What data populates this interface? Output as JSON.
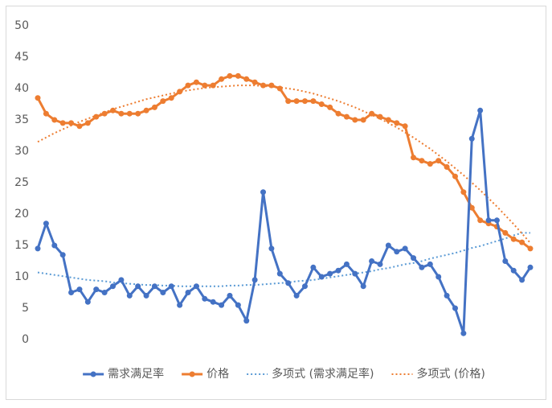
{
  "chart_data": {
    "type": "line",
    "ylim": [
      0,
      50
    ],
    "yticks": [
      0,
      5,
      10,
      15,
      20,
      25,
      30,
      35,
      40,
      45,
      50
    ],
    "grid": false,
    "legend": "bottom",
    "series": [
      {
        "name": "需求满足率",
        "color": "#4472c4",
        "style": "solid",
        "marker": true,
        "values": [
          14.5,
          18.5,
          15,
          13.5,
          7.5,
          8,
          6,
          8,
          7.5,
          8.5,
          9.5,
          7,
          8.5,
          7,
          8.5,
          7.5,
          8.5,
          5.5,
          7.5,
          8.5,
          6.5,
          6,
          5.5,
          7,
          5.5,
          3,
          9.5,
          23.5,
          14.5,
          10.5,
          9,
          7,
          8.5,
          11.5,
          10,
          10.5,
          11,
          12,
          10.5,
          8.5,
          12.5,
          12,
          15,
          14,
          14.5,
          13,
          11.5,
          12,
          10,
          7,
          5,
          1,
          32,
          36.5,
          19,
          19,
          12.5,
          11,
          9.5,
          11.5
        ]
      },
      {
        "name": "价格",
        "color": "#ed7d31",
        "style": "solid",
        "marker": true,
        "values": [
          38.5,
          36,
          35,
          34.5,
          34.5,
          34,
          34.5,
          35.5,
          36,
          36.5,
          36,
          36,
          36,
          36.5,
          37,
          38,
          38.5,
          39.5,
          40.5,
          41,
          40.5,
          40.5,
          41.5,
          42,
          42,
          41.5,
          41,
          40.5,
          40.5,
          40,
          38,
          38,
          38,
          38,
          37.5,
          37,
          36,
          35.5,
          35,
          35,
          36,
          35.5,
          35,
          34.5,
          34,
          29,
          28.5,
          28,
          28.5,
          27.5,
          26,
          23.5,
          21,
          19,
          18.5,
          18,
          17,
          16,
          15.5,
          14.5
        ]
      },
      {
        "name": "多项式 (需求满足率)",
        "color": "#5b9bd5",
        "style": "dotted",
        "marker": false,
        "values": [
          10.7,
          10.5,
          10.3,
          10.1,
          9.9,
          9.7,
          9.5,
          9.4,
          9.3,
          9.1,
          9.0,
          8.9,
          8.8,
          8.7,
          8.7,
          8.6,
          8.6,
          8.5,
          8.5,
          8.5,
          8.5,
          8.5,
          8.5,
          8.6,
          8.6,
          8.7,
          8.7,
          8.8,
          8.9,
          9.0,
          9.1,
          9.3,
          9.4,
          9.5,
          9.7,
          9.9,
          10.1,
          10.3,
          10.5,
          10.7,
          10.9,
          11.2,
          11.4,
          11.7,
          12.0,
          12.2,
          12.5,
          12.9,
          13.2,
          13.5,
          13.8,
          14.2,
          14.6,
          14.9,
          15.3,
          15.7,
          16.1,
          16.6,
          17.0,
          17.0
        ]
      },
      {
        "name": "多项式 (价格)",
        "color": "#ed7d31",
        "style": "dotted",
        "marker": false,
        "values": [
          31.5,
          32.2,
          32.9,
          33.5,
          34.1,
          34.7,
          35.2,
          35.7,
          36.2,
          36.7,
          37.1,
          37.5,
          37.9,
          38.3,
          38.6,
          38.9,
          39.2,
          39.5,
          39.7,
          39.9,
          40.1,
          40.2,
          40.3,
          40.4,
          40.5,
          40.5,
          40.5,
          40.4,
          40.3,
          40.2,
          40.0,
          39.8,
          39.5,
          39.2,
          38.8,
          38.4,
          38.0,
          37.5,
          37.0,
          36.4,
          35.8,
          35.2,
          34.5,
          33.8,
          33.0,
          32.2,
          31.3,
          30.4,
          29.4,
          28.4,
          27.3,
          26.2,
          25.0,
          23.8,
          22.5,
          21.2,
          19.8,
          18.4,
          16.9,
          15.4
        ]
      }
    ]
  }
}
